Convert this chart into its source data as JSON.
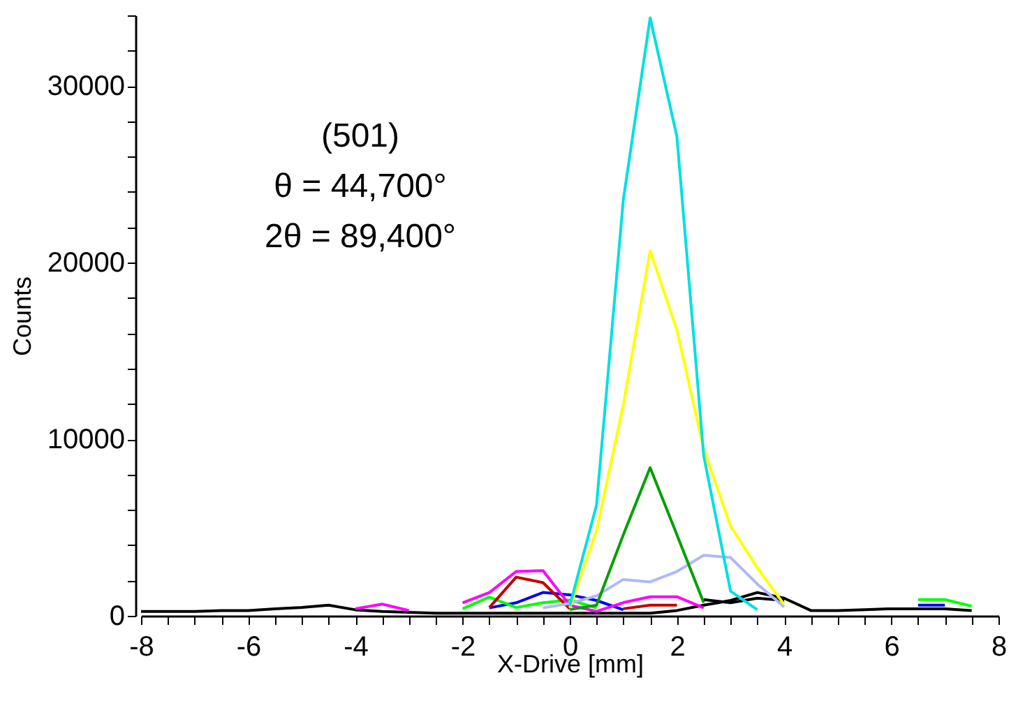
{
  "chart_data": {
    "type": "line",
    "xlabel": "X-Drive [mm]",
    "ylabel": "Counts",
    "annotations": [
      "(501)",
      "θ = 44,700°",
      "2θ = 89,400°"
    ],
    "x": [
      -8,
      -7.5,
      -7,
      -6.5,
      -6,
      -5.5,
      -5,
      -4.5,
      -4,
      -3.5,
      -3,
      -2.5,
      -2,
      -1.5,
      -1,
      -0.5,
      0,
      0.5,
      1,
      1.5,
      2,
      2.5,
      3,
      3.5,
      4,
      4.5,
      5,
      5.5,
      6,
      6.5,
      7,
      7.5
    ],
    "xlim": [
      -8,
      8
    ],
    "ylim": [
      0,
      34000
    ],
    "xticks": [
      -8,
      {
        "value": -7.5,
        "label": null
      },
      {
        "value": -7,
        "label": null
      },
      {
        "value": -6.5,
        "label": null
      },
      -6,
      {
        "value": -5.5,
        "label": null
      },
      {
        "value": -5,
        "label": null
      },
      {
        "value": -4.5,
        "label": null
      },
      -4,
      {
        "value": -3.5,
        "label": null
      },
      {
        "value": -3,
        "label": null
      },
      {
        "value": -2.5,
        "label": null
      },
      -2,
      {
        "value": -1.5,
        "label": null
      },
      {
        "value": -1,
        "label": null
      },
      {
        "value": -0.5,
        "label": null
      },
      0,
      {
        "value": 0.5,
        "label": null
      },
      {
        "value": 1,
        "label": null
      },
      {
        "value": 1.5,
        "label": null
      },
      2,
      {
        "value": 2.5,
        "label": null
      },
      {
        "value": 3,
        "label": null
      },
      {
        "value": 3.5,
        "label": null
      },
      4,
      {
        "value": 4.5,
        "label": null
      },
      {
        "value": 5,
        "label": null
      },
      {
        "value": 5.5,
        "label": null
      },
      6,
      {
        "value": 6.5,
        "label": null
      },
      {
        "value": 7,
        "label": null
      },
      {
        "value": 7.5,
        "label": null
      },
      8
    ],
    "yticks": [
      0,
      {
        "value": 2000,
        "label": null
      },
      {
        "value": 4000,
        "label": null
      },
      {
        "value": 6000,
        "label": null
      },
      {
        "value": 8000,
        "label": null
      },
      10000,
      {
        "value": 12000,
        "label": null
      },
      {
        "value": 14000,
        "label": null
      },
      {
        "value": 16000,
        "label": null
      },
      {
        "value": 18000,
        "label": null
      },
      20000,
      {
        "value": 22000,
        "label": null
      },
      {
        "value": 24000,
        "label": null
      },
      {
        "value": 26000,
        "label": null
      },
      {
        "value": 28000,
        "label": null
      },
      30000,
      {
        "value": 32000,
        "label": null
      },
      {
        "value": 34000,
        "label": null
      }
    ],
    "series": [
      {
        "color": "#000000",
        "values": [
          250,
          250,
          250,
          300,
          300,
          400,
          470,
          600,
          340,
          250,
          200,
          150,
          150,
          150,
          150,
          150,
          150,
          150,
          150,
          150,
          300,
          600,
          870,
          1320,
          1000,
          300,
          300,
          350,
          400,
          400,
          400,
          300
        ]
      },
      {
        "color": "#000000",
        "values": [
          null,
          null,
          null,
          null,
          null,
          null,
          null,
          null,
          null,
          null,
          null,
          null,
          null,
          null,
          null,
          null,
          null,
          null,
          null,
          null,
          null,
          920,
          740,
          1000,
          870,
          null,
          null,
          null,
          null,
          null,
          null,
          null
        ]
      },
      {
        "color": "#0000ff",
        "values": [
          null,
          null,
          null,
          null,
          null,
          null,
          null,
          null,
          null,
          null,
          null,
          null,
          null,
          450,
          740,
          1320,
          1190,
          870,
          340,
          null,
          null,
          null,
          null,
          null,
          null,
          null,
          null,
          null,
          null,
          600,
          600,
          null
        ]
      },
      {
        "color": "#00ff00",
        "values": [
          null,
          null,
          null,
          null,
          null,
          null,
          null,
          null,
          null,
          null,
          null,
          null,
          400,
          1060,
          470,
          740,
          900,
          450,
          null,
          null,
          null,
          null,
          null,
          null,
          null,
          null,
          null,
          null,
          null,
          920,
          920,
          550
        ]
      },
      {
        "color": "#c00000",
        "values": [
          null,
          null,
          null,
          null,
          null,
          null,
          null,
          null,
          null,
          null,
          null,
          null,
          null,
          470,
          2190,
          1880,
          400,
          null,
          400,
          600,
          600,
          null,
          null,
          null,
          null,
          null,
          null,
          null,
          null,
          null,
          null,
          null
        ]
      },
      {
        "color": "#ff00ff",
        "values": [
          null,
          null,
          null,
          null,
          null,
          null,
          null,
          null,
          400,
          660,
          300,
          null,
          740,
          1320,
          2510,
          2560,
          600,
          250,
          750,
          1080,
          1080,
          450,
          null,
          null,
          null,
          null,
          null,
          null,
          null,
          null,
          null,
          null
        ]
      },
      {
        "color": "#b0b8f8",
        "values": [
          null,
          null,
          null,
          null,
          null,
          null,
          null,
          null,
          null,
          null,
          null,
          null,
          null,
          null,
          null,
          450,
          700,
          1130,
          2060,
          1920,
          2510,
          3430,
          3300,
          1800,
          500,
          null,
          null,
          null,
          null,
          null,
          null,
          null
        ]
      },
      {
        "color": "#00a000",
        "values": [
          null,
          null,
          null,
          null,
          null,
          null,
          null,
          null,
          null,
          null,
          null,
          null,
          null,
          null,
          null,
          null,
          350,
          600,
          4590,
          8390,
          4590,
          740,
          null,
          null,
          null,
          null,
          null,
          null,
          null,
          null,
          null,
          null
        ]
      },
      {
        "color": "#ffff00",
        "values": [
          null,
          null,
          null,
          null,
          null,
          null,
          null,
          null,
          null,
          null,
          null,
          null,
          null,
          null,
          null,
          null,
          450,
          4830,
          11960,
          20670,
          16180,
          9450,
          5090,
          2720,
          650,
          null,
          null,
          null,
          null,
          null,
          null,
          null
        ]
      },
      {
        "color": "#00e0e0",
        "values": [
          null,
          null,
          null,
          null,
          null,
          null,
          null,
          null,
          null,
          null,
          null,
          null,
          null,
          null,
          null,
          null,
          550,
          6280,
          23570,
          33860,
          27130,
          9060,
          1400,
          340,
          null,
          null,
          null,
          null,
          null,
          null,
          null,
          null
        ]
      }
    ]
  }
}
